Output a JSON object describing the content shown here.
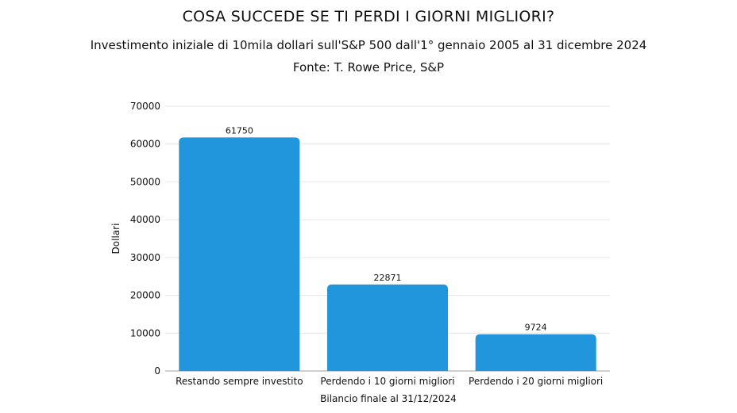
{
  "chart_data": {
    "type": "bar",
    "title": "COSA SUCCEDE SE TI PERDI I GIORNI MIGLIORI?",
    "subtitle": "Investimento iniziale di 10mila dollari sull'S&P 500 dall'1° gennaio 2005 al 31 dicembre 2024",
    "source": "Fonte: T. Rowe Price, S&P",
    "xlabel": "Bilancio finale al 31/12/2024",
    "ylabel": "Dollari",
    "categories": [
      "Restando sempre investito",
      "Perdendo i 10 giorni migliori",
      "Perdendo i 20 giorni migliori"
    ],
    "values": [
      61750,
      22871,
      9724
    ],
    "data_labels": [
      "61750",
      "22871",
      "9724"
    ],
    "ylim": [
      0,
      70000
    ],
    "yticks": [
      "0",
      "10000",
      "20000",
      "30000",
      "40000",
      "50000",
      "60000",
      "70000"
    ],
    "grid": true,
    "legend": "none",
    "colors": {
      "bar": "#2196DC",
      "grid": "#E6E6E6",
      "axis": "#9E9E9E"
    }
  }
}
